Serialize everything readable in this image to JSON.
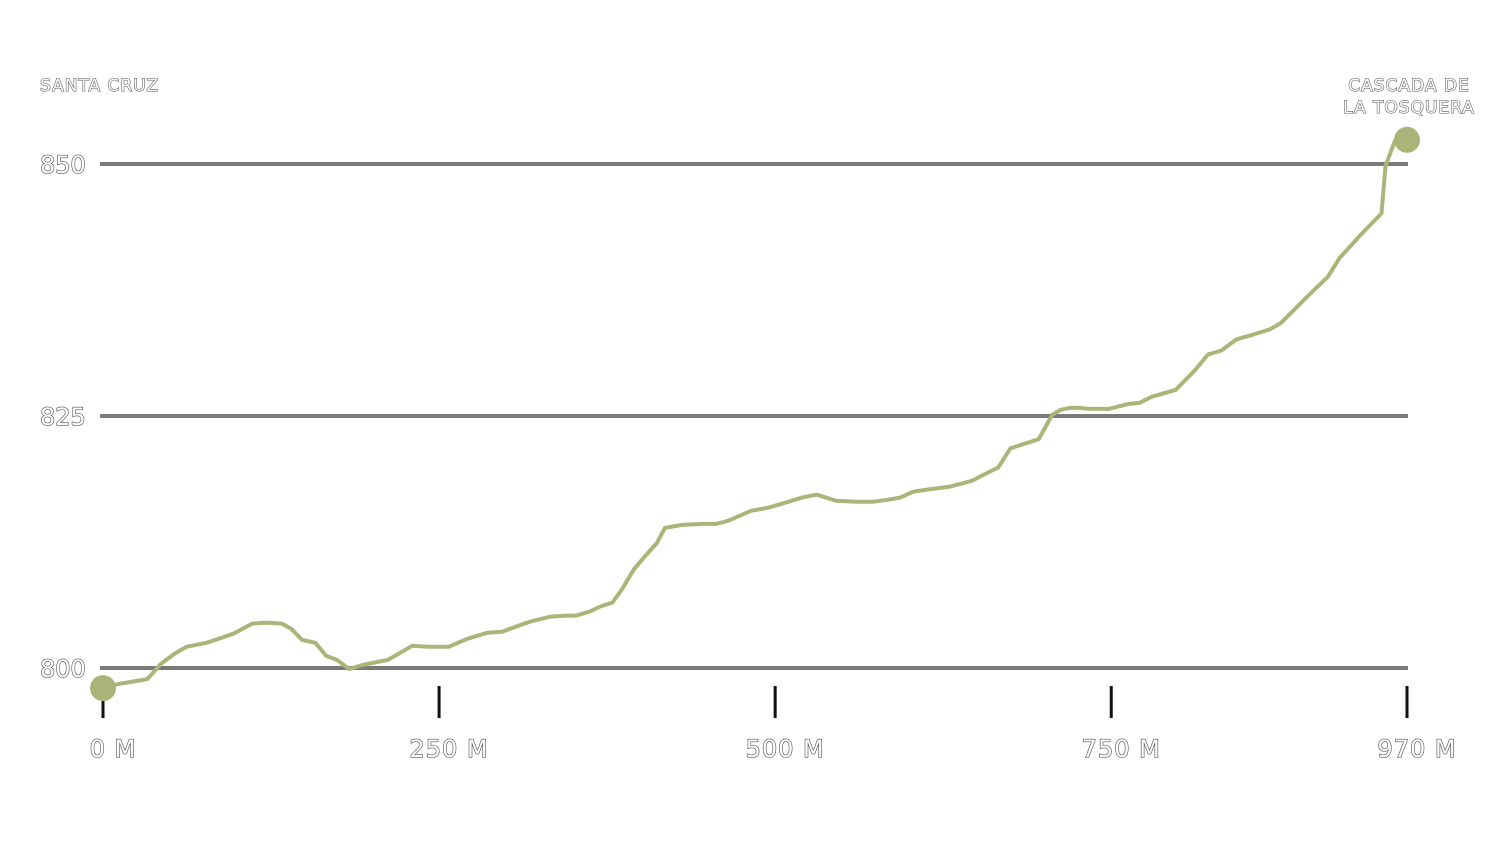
{
  "colors": {
    "line": "#a9b67a",
    "marker": "#aab478",
    "grid": "#7a7a7a",
    "tick": "#111111"
  },
  "chart_data": {
    "type": "line",
    "title": "",
    "xlabel": "",
    "ylabel": "",
    "xlim": [
      0,
      970
    ],
    "ylim": [
      795,
      853
    ],
    "grid": true,
    "y_ticks": [
      800,
      825,
      850
    ],
    "y_tick_labels": [
      "800",
      "825",
      "850"
    ],
    "x_ticks": [
      0,
      250,
      500,
      750,
      970
    ],
    "x_tick_labels": [
      "0 M",
      "250 M",
      "500 M",
      "750 M",
      "970 M"
    ],
    "start_label": "SANTA CRUZ",
    "end_label_lines": [
      "CASCADA DE",
      "LA TOSQUERA"
    ],
    "series": [
      {
        "x": [
          0,
          11,
          33,
          43,
          53,
          62,
          77,
          86,
          97,
          111,
          122,
          133,
          140,
          148,
          158,
          166,
          174,
          183,
          193,
          212,
          221,
          230,
          242,
          257,
          271,
          286,
          297,
          305,
          311,
          318,
          333,
          345,
          352,
          362,
          370,
          379,
          386,
          395,
          402,
          412,
          418,
          431,
          447,
          456,
          465,
          482,
          495,
          505,
          520,
          531,
          545,
          561,
          573,
          584,
          593,
          603,
          613,
          630,
          639,
          647,
          651,
          666,
          675,
          696,
          706,
          712,
          719,
          727,
          733,
          748,
          763,
          771,
          780,
          798,
          812,
          822,
          832,
          843,
          856,
          868,
          876,
          897,
          911,
          920,
          929,
          935,
          951,
          954,
          961,
          970
        ],
        "y": [
          798.0,
          798.4,
          798.9,
          800.4,
          801.4,
          802.1,
          802.5,
          802.9,
          803.4,
          804.4,
          804.5,
          804.4,
          803.9,
          802.8,
          802.5,
          801.2,
          800.8,
          799.9,
          800.3,
          800.8,
          801.5,
          802.2,
          802.1,
          802.1,
          802.9,
          803.5,
          803.6,
          804.0,
          804.3,
          804.6,
          805.1,
          805.2,
          805.2,
          805.6,
          806.1,
          806.5,
          807.8,
          809.8,
          810.9,
          812.4,
          813.9,
          814.2,
          814.3,
          814.3,
          814.6,
          815.6,
          815.9,
          816.3,
          816.9,
          817.2,
          816.6,
          816.5,
          816.5,
          816.7,
          816.9,
          817.5,
          817.7,
          818.0,
          818.3,
          818.6,
          818.9,
          819.9,
          821.8,
          822.7,
          825.1,
          825.6,
          825.8,
          825.8,
          825.7,
          825.7,
          826.2,
          826.3,
          826.9,
          827.6,
          829.5,
          831.1,
          831.5,
          832.6,
          833.1,
          833.6,
          834.2,
          837.0,
          838.8,
          840.7,
          842.0,
          842.9,
          845.1,
          849.8,
          852.3,
          852.4
        ]
      }
    ]
  }
}
